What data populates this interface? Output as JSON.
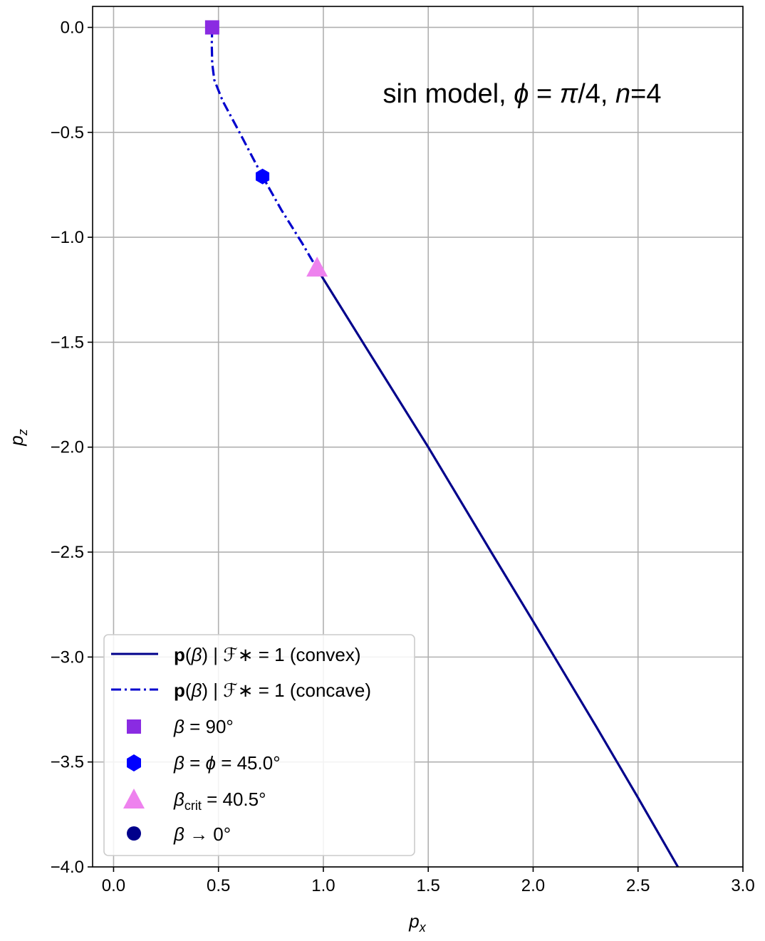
{
  "chart_data": {
    "type": "line",
    "xlabel": "p_x",
    "ylabel": "p_z",
    "xlim": [
      -0.1,
      3.0
    ],
    "ylim": [
      -4.0,
      0.1
    ],
    "xticks": [
      "0.0",
      "0.5",
      "1.0",
      "1.5",
      "2.0",
      "2.5",
      "3.0"
    ],
    "yticks": [
      "0.0",
      "−0.5",
      "−1.0",
      "−1.5",
      "−2.0",
      "−2.5",
      "−3.0",
      "−3.5",
      "−4.0"
    ],
    "xtick_values": [
      0,
      0.5,
      1.0,
      1.5,
      2.0,
      2.5,
      3.0
    ],
    "ytick_values": [
      0,
      -0.5,
      -1.0,
      -1.5,
      -2.0,
      -2.5,
      -3.0,
      -3.5,
      -4.0
    ],
    "grid": true,
    "legend_position": "lower-left",
    "annotation": {
      "text": "sin model, ϕ = π/4, n=4",
      "position": "top-right",
      "parts": [
        "sin model, ",
        "ϕ",
        " = ",
        "π",
        "/4, ",
        "n",
        "=4"
      ]
    },
    "series": [
      {
        "name": "p(β) | ℱ∗ = 1 (convex)",
        "style": "solid",
        "color": "#00008b",
        "x": [
          0.97,
          1.2,
          1.5,
          1.8,
          2.0,
          2.3,
          2.5,
          2.69
        ],
        "y": [
          -1.15,
          -1.52,
          -2.0,
          -2.5,
          -2.83,
          -3.33,
          -3.67,
          -4.0
        ]
      },
      {
        "name": "p(β) | ℱ∗ = 1 (concave)",
        "style": "dashdot",
        "color": "#0000cd",
        "x": [
          0.47,
          0.468,
          0.47,
          0.48,
          0.52,
          0.6,
          0.71,
          0.8,
          0.9,
          0.97
        ],
        "y": [
          0.0,
          -0.08,
          -0.17,
          -0.25,
          -0.35,
          -0.5,
          -0.71,
          -0.87,
          -1.03,
          -1.15
        ]
      }
    ],
    "markers": [
      {
        "name": "β = 90°",
        "shape": "square",
        "color": "#8a2be2",
        "x": 0.47,
        "y": 0.0
      },
      {
        "name": "β = ϕ = 45.0°",
        "shape": "hexagon",
        "color": "#0000ff",
        "x": 0.71,
        "y": -0.71
      },
      {
        "name": "βcrit = 40.5°",
        "shape": "triangle",
        "color": "#ee82ee",
        "x": 0.97,
        "y": -1.15
      },
      {
        "name": "β → 0°",
        "shape": "circle",
        "color": "#00008b",
        "x": null,
        "y": null
      }
    ],
    "legend": {
      "entries": [
        {
          "key": "line-solid",
          "parts": [
            "p",
            "(",
            "β",
            ") | ",
            "ℱ∗",
            " = 1 (convex)"
          ]
        },
        {
          "key": "line-dashdot",
          "parts": [
            "p",
            "(",
            "β",
            ") | ",
            "ℱ∗",
            " = 1 (concave)"
          ]
        },
        {
          "key": "marker-square",
          "parts": [
            "β",
            " = 90°"
          ]
        },
        {
          "key": "marker-hexagon",
          "parts": [
            "β",
            " = ",
            "ϕ",
            " = 45.0°"
          ]
        },
        {
          "key": "marker-triangle",
          "parts": [
            "β",
            "crit",
            " = 40.5°"
          ]
        },
        {
          "key": "marker-circle",
          "parts": [
            "β",
            " → 0°"
          ]
        }
      ]
    }
  }
}
